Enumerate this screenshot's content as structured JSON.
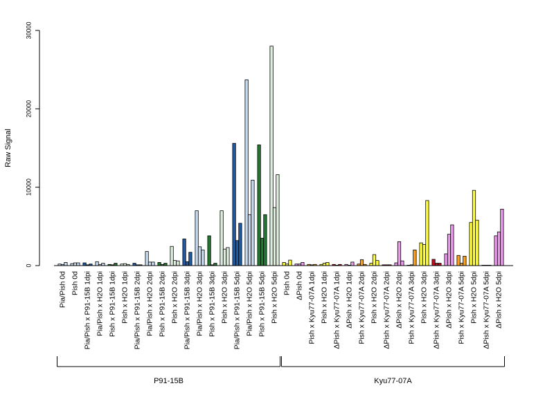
{
  "chart_data": {
    "type": "bar",
    "ylabel": "Raw Signal",
    "ylim": [
      0,
      30000
    ],
    "yticks": [
      0,
      10000,
      20000,
      30000
    ],
    "grid": false,
    "legend": "none",
    "categories": [
      "Pia/Pish 0d",
      "Pish 0d",
      "Pia/Pish x P91-15B 1dpi",
      "Pia/Pish x H2O 1dpi",
      "Pish x P91-15B 1dpi",
      "Pish x H2O 1dpi",
      "Pia/Pish x P91-15B 2dpi",
      "Pia/Pish x H2O 2dpi",
      "Pish x P91-15B 2dpi",
      "Pish x H2O 2dpi",
      "Pia/Pish x P91-15B 3dpi",
      "Pia/Pish x H2O 3dpi",
      "Pish x P91-15B 3dpi",
      "Pish x H2O 3dpi",
      "Pia/Pish x P91-15B 5dpi",
      "Pia/Pish x H2O 5dpi",
      "Pish x P91-15B 5dpi",
      "Pish x H2O 5dpi",
      "Pish 0d",
      "ΔPish 0d",
      "Pish x Kyu77-07A 1dpi",
      "Pish x H2O 1dpi",
      "ΔPish x Kyu77-07A 1dpi",
      "ΔPish x H2O 1dpi",
      "Pish x Kyu77-07A 2dpi",
      "Pish x H2O 2dpi",
      "ΔPish x Kyu77-07A 2dpi",
      "ΔPish x H2O 2dpi",
      "Pish x Kyu77-07A 3dpi",
      "Pish x H2O 3dpi",
      "ΔPish x Kyu77-07A 3dpi",
      "ΔPish x H2O 3dpi",
      "Pish x Kyu77-07A 5dpi",
      "Pish x H2O 5dpi",
      "ΔPish x Kyu77-07A 5dpi",
      "ΔPish x H2O 5dpi"
    ],
    "bar_colors": [
      "#c6dbef",
      "#c6dbef",
      "#1f5aa6",
      "#c6dbef",
      "#217a2f",
      "#ddeedd",
      "#1f5aa6",
      "#c6dbef",
      "#217a2f",
      "#ddeedd",
      "#1f5aa6",
      "#c6dbef",
      "#217a2f",
      "#ddeedd",
      "#1f5aa6",
      "#c6dbef",
      "#217a2f",
      "#ddeedd",
      "#ffff33",
      "#ee99ee",
      "#ff9f1a",
      "#ffff33",
      "#cc0a1e",
      "#ee99ee",
      "#ff9f1a",
      "#ffff33",
      "#cc0a1e",
      "#ee99ee",
      "#ff9f1a",
      "#ffff33",
      "#cc0a1e",
      "#ee99ee",
      "#ff9f1a",
      "#ffff33",
      "#cc0a1e",
      "#ee99ee"
    ],
    "values": [
      [
        200,
        150,
        400
      ],
      [
        250,
        350,
        350
      ],
      [
        350,
        100,
        200
      ],
      [
        500,
        150,
        300
      ],
      [
        150,
        100,
        300
      ],
      [
        200,
        250,
        150
      ],
      [
        300,
        100,
        100
      ],
      [
        1800,
        450,
        450
      ],
      [
        400,
        150,
        300
      ],
      [
        2450,
        650,
        600
      ],
      [
        3400,
        500,
        1700
      ],
      [
        7000,
        2400,
        2000
      ],
      [
        3800,
        100,
        300
      ],
      [
        7000,
        2100,
        2300
      ],
      [
        15600,
        3200,
        5400
      ],
      [
        23700,
        6500,
        10900
      ],
      [
        15400,
        3500,
        6500
      ],
      [
        28000,
        7400,
        11600
      ],
      [
        400,
        200,
        700
      ],
      [
        200,
        200,
        400
      ],
      [
        150,
        100,
        150
      ],
      [
        150,
        300,
        400
      ],
      [
        150,
        50,
        150
      ],
      [
        150,
        50,
        450
      ],
      [
        200,
        750,
        150
      ],
      [
        300,
        1400,
        650
      ],
      [
        100,
        100,
        100
      ],
      [
        350,
        3050,
        600
      ],
      [
        50,
        100,
        2000
      ],
      [
        2900,
        2700,
        8300
      ],
      [
        800,
        300,
        300
      ],
      [
        1500,
        4000,
        5200
      ],
      [
        1300,
        300,
        1200
      ],
      [
        5500,
        9600,
        5800
      ],
      [
        50,
        50,
        50
      ],
      [
        3800,
        4300,
        7200
      ]
    ],
    "groups": [
      {
        "label": "P91-15B",
        "start": 0,
        "end": 17
      },
      {
        "label": "Kyu77-07A",
        "start": 18,
        "end": 35
      }
    ]
  }
}
